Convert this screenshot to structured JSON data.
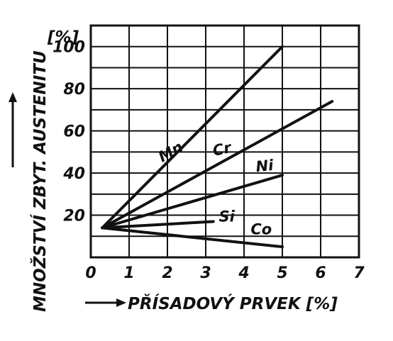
{
  "chart_data": {
    "type": "line",
    "title": "",
    "xlabel": "PŘÍSADOVÝ PRVEK [%]",
    "ylabel": "MNOŽSTVÍ ZBYT. AUSTENITU",
    "yunit": "[%]",
    "xlim": [
      0,
      7
    ],
    "ylim": [
      0,
      110
    ],
    "xticks": [
      "0",
      "1",
      "2",
      "3",
      "4",
      "5",
      "6",
      "7"
    ],
    "yticks": [
      "20",
      "40",
      "60",
      "80",
      "100"
    ],
    "grid": true,
    "series": [
      {
        "name": "Mn",
        "x": [
          0.3,
          5.0
        ],
        "y": [
          14,
          100
        ]
      },
      {
        "name": "Cr",
        "x": [
          0.3,
          6.3
        ],
        "y": [
          14,
          74
        ]
      },
      {
        "name": "Ni",
        "x": [
          0.3,
          5.0
        ],
        "y": [
          14,
          39
        ]
      },
      {
        "name": "Si",
        "x": [
          0.3,
          3.2
        ],
        "y": [
          14,
          17
        ]
      },
      {
        "name": "Co",
        "x": [
          0.3,
          5.0
        ],
        "y": [
          14,
          5
        ]
      }
    ]
  },
  "colors": {
    "ink": "#111111",
    "paper": "#ffffff"
  }
}
